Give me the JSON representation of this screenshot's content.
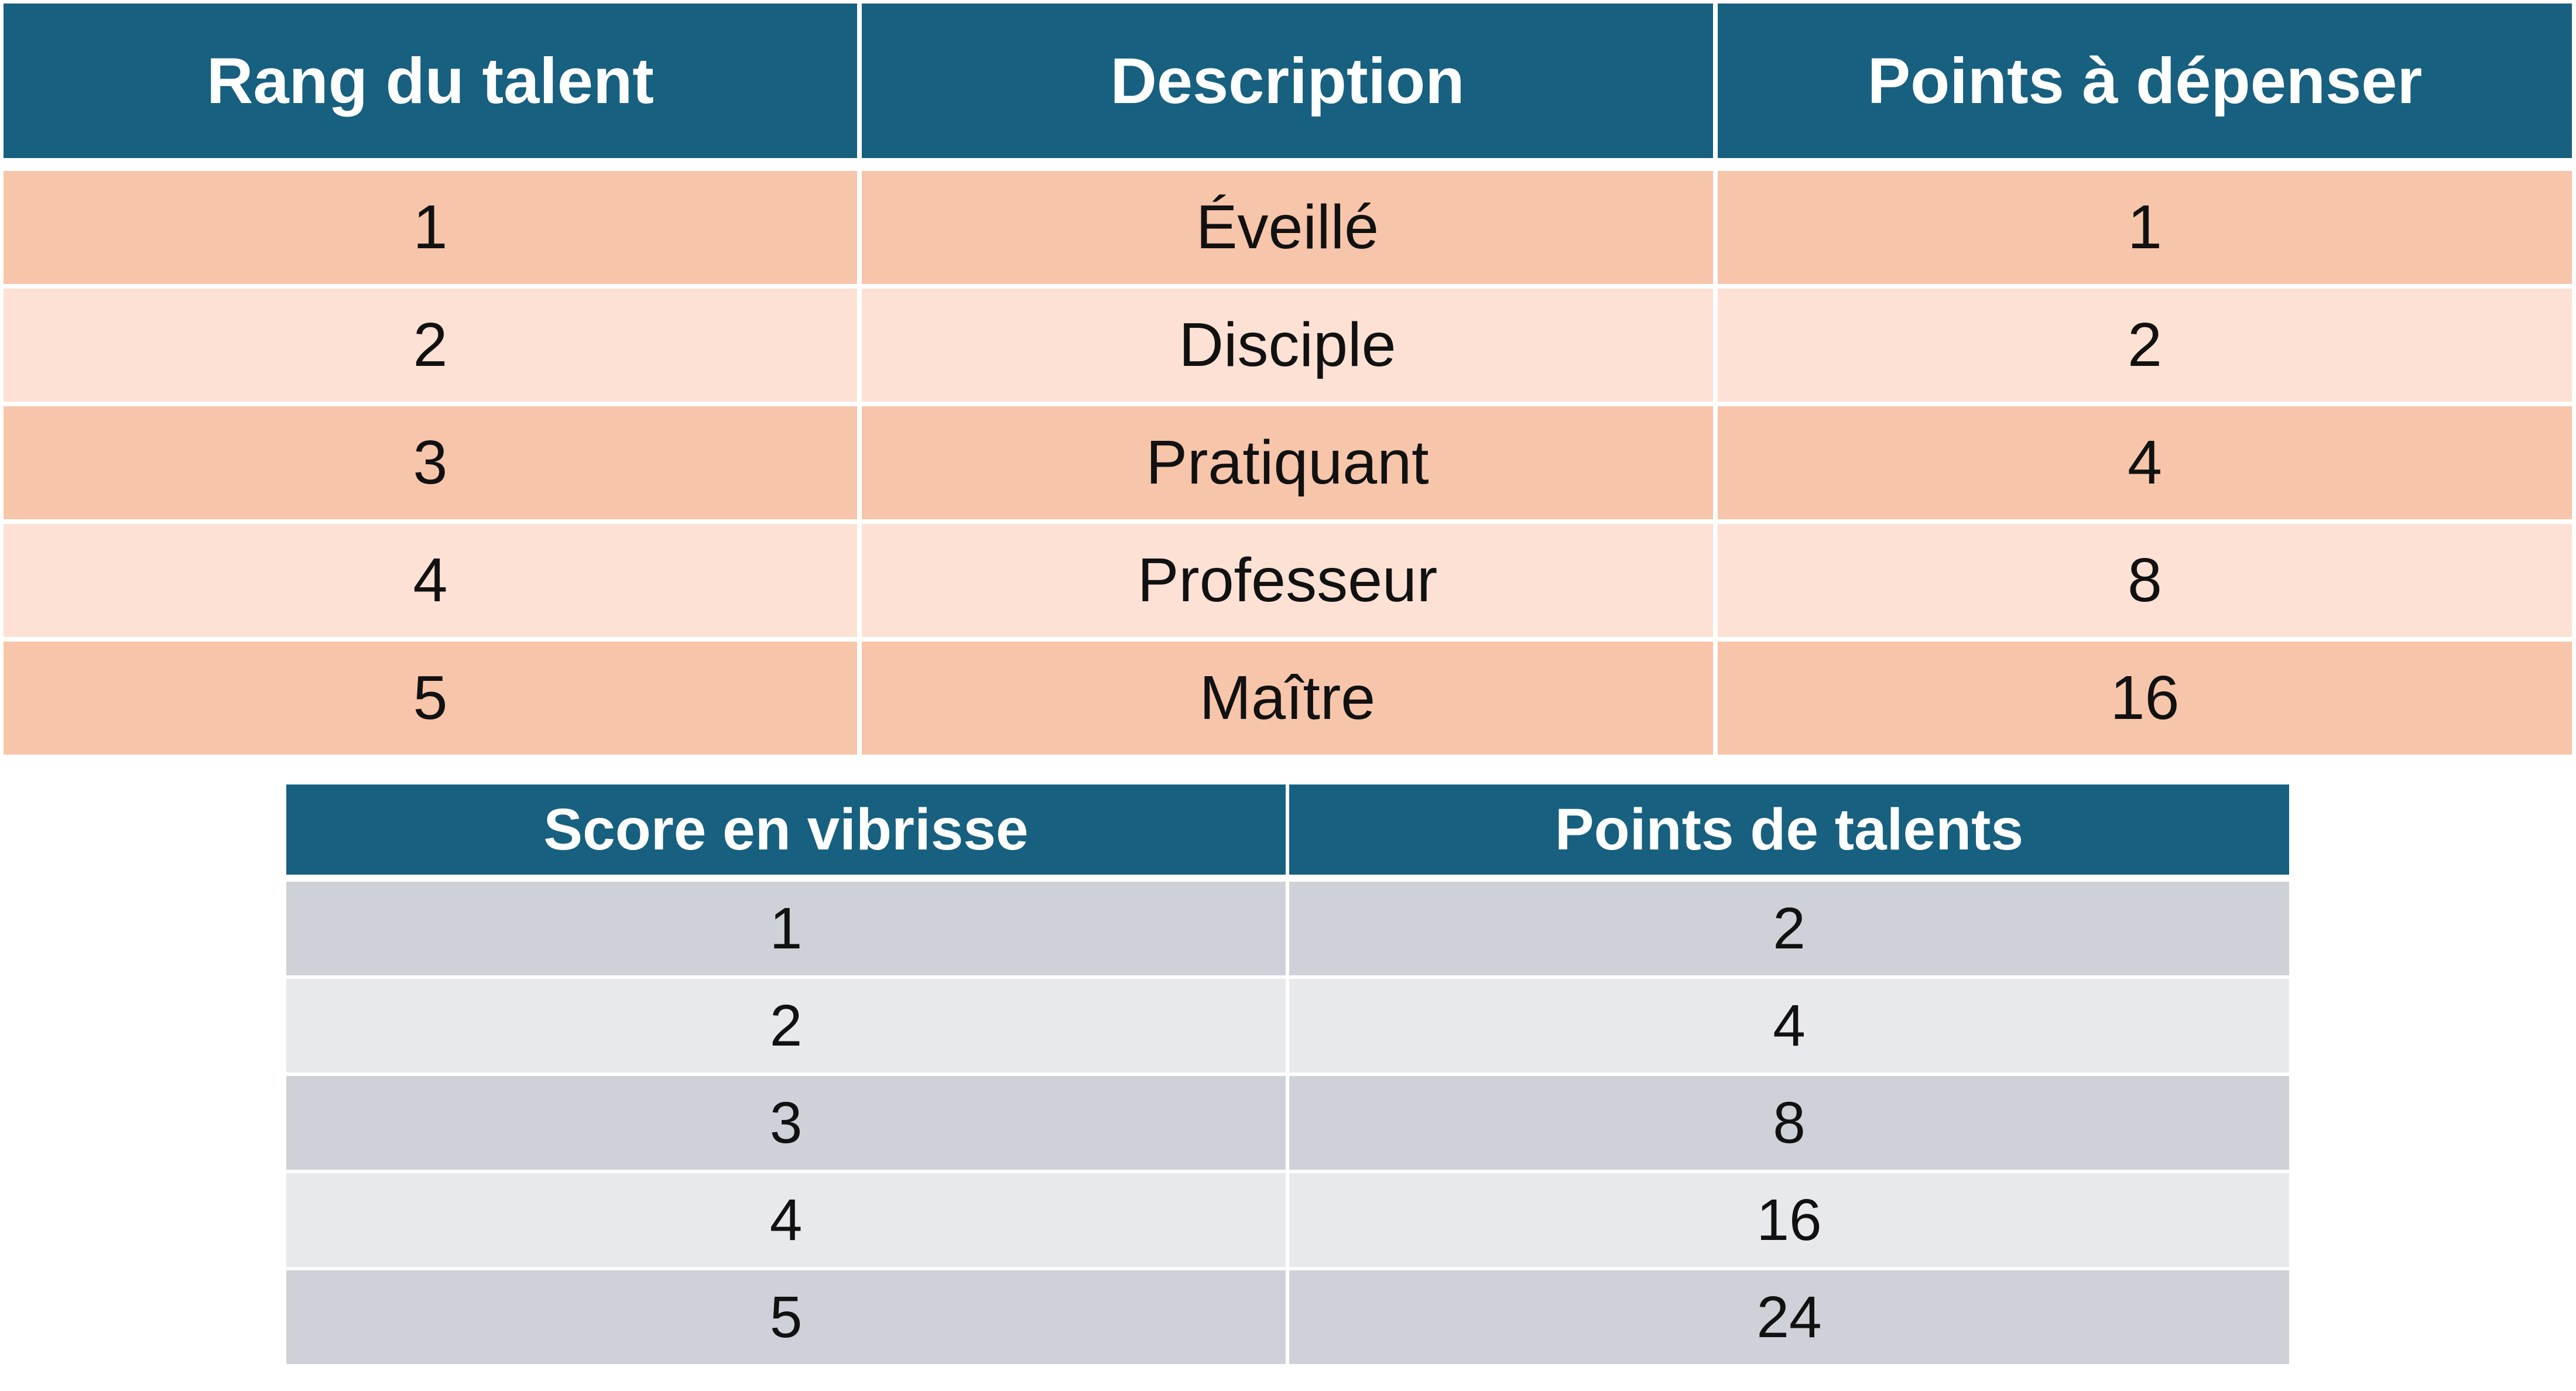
{
  "talent_table": {
    "headers": [
      "Rang du talent",
      "Description",
      "Points à dépenser"
    ],
    "rows": [
      [
        "1",
        "Éveillé",
        "1"
      ],
      [
        "2",
        "Disciple",
        "2"
      ],
      [
        "3",
        "Pratiquant",
        "4"
      ],
      [
        "4",
        "Professeur",
        "8"
      ],
      [
        "5",
        "Maître",
        "16"
      ]
    ],
    "colors": {
      "header_bg": "#17607f",
      "row_odd_bg": "#f6c5aa",
      "row_even_bg": "#fce1d4"
    }
  },
  "score_table": {
    "headers": [
      "Score en vibrisse",
      "Points de talents"
    ],
    "rows": [
      [
        "1",
        "2"
      ],
      [
        "2",
        "4"
      ],
      [
        "3",
        "8"
      ],
      [
        "4",
        "16"
      ],
      [
        "5",
        "24"
      ]
    ],
    "colors": {
      "header_bg": "#17607f",
      "row_odd_bg": "#ced2d8",
      "row_even_bg": "#e7e9ec"
    }
  }
}
